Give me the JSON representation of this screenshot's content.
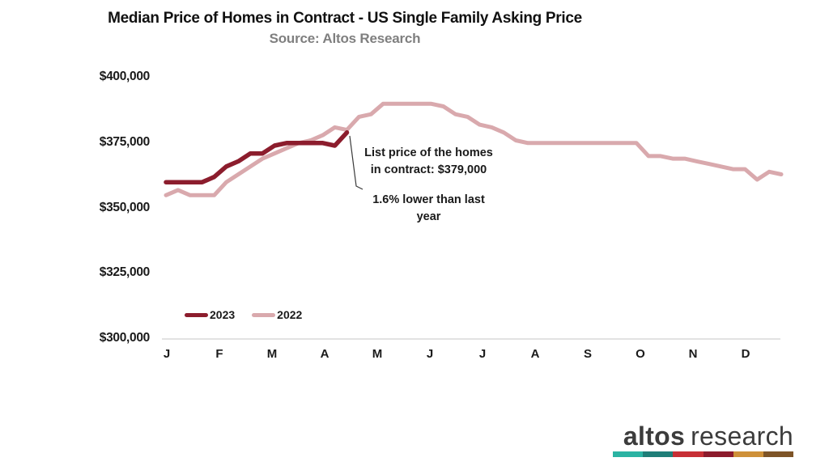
{
  "chart_data": {
    "type": "line",
    "title": "Median Price of Homes in Contract - US Single Family Asking Price",
    "subtitle": "Source: Altos Research",
    "x_axis": {
      "months": [
        "J",
        "F",
        "M",
        "A",
        "M",
        "J",
        "J",
        "A",
        "S",
        "O",
        "N",
        "D"
      ],
      "unit": "weekly points, Jan-Dec"
    },
    "y_axis": {
      "unit": "USD",
      "ylim_k": [
        300,
        400
      ],
      "gridlines": "none (baseline only)",
      "ticks": [
        {
          "label": "$400,000",
          "value_k": 400
        },
        {
          "label": "$375,000",
          "value_k": 375
        },
        {
          "label": "$350,000",
          "value_k": 350
        },
        {
          "label": "$325,000",
          "value_k": 325
        },
        {
          "label": "$300,000",
          "value_k": 300
        }
      ]
    },
    "series": [
      {
        "name": "2023",
        "color": "#8C1D2D",
        "width": 5.5,
        "values_k": [
          360,
          360,
          360,
          360,
          362,
          366,
          368,
          371,
          371,
          374,
          375,
          375,
          375,
          375,
          374,
          379
        ]
      },
      {
        "name": "2022",
        "color": "#D9A9AD",
        "width": 5,
        "values_k": [
          355,
          357,
          355,
          355,
          355,
          360,
          363,
          366,
          369,
          371,
          373,
          375,
          376,
          378,
          381,
          380,
          385,
          386,
          390,
          390,
          390,
          390,
          390,
          389,
          386,
          385,
          382,
          381,
          379,
          376,
          375,
          375,
          375,
          375,
          375,
          375,
          375,
          375,
          375,
          375,
          370,
          370,
          369,
          369,
          368,
          367,
          366,
          365,
          365,
          361,
          364,
          363
        ]
      }
    ],
    "annotations": {
      "list_price": "List price of the homes\nin contract: $379,000",
      "yoy": "1.6% lower than last\nyear"
    },
    "legend_position": "inside bottom-left"
  },
  "logo": {
    "name_bold": "altos",
    "name_light": "research",
    "text_color": "#3C3C3C",
    "bar_colors": [
      "#2BB3A3",
      "#1F7E78",
      "#C72F35",
      "#8C1B2C",
      "#CE9038",
      "#7E5427"
    ]
  }
}
